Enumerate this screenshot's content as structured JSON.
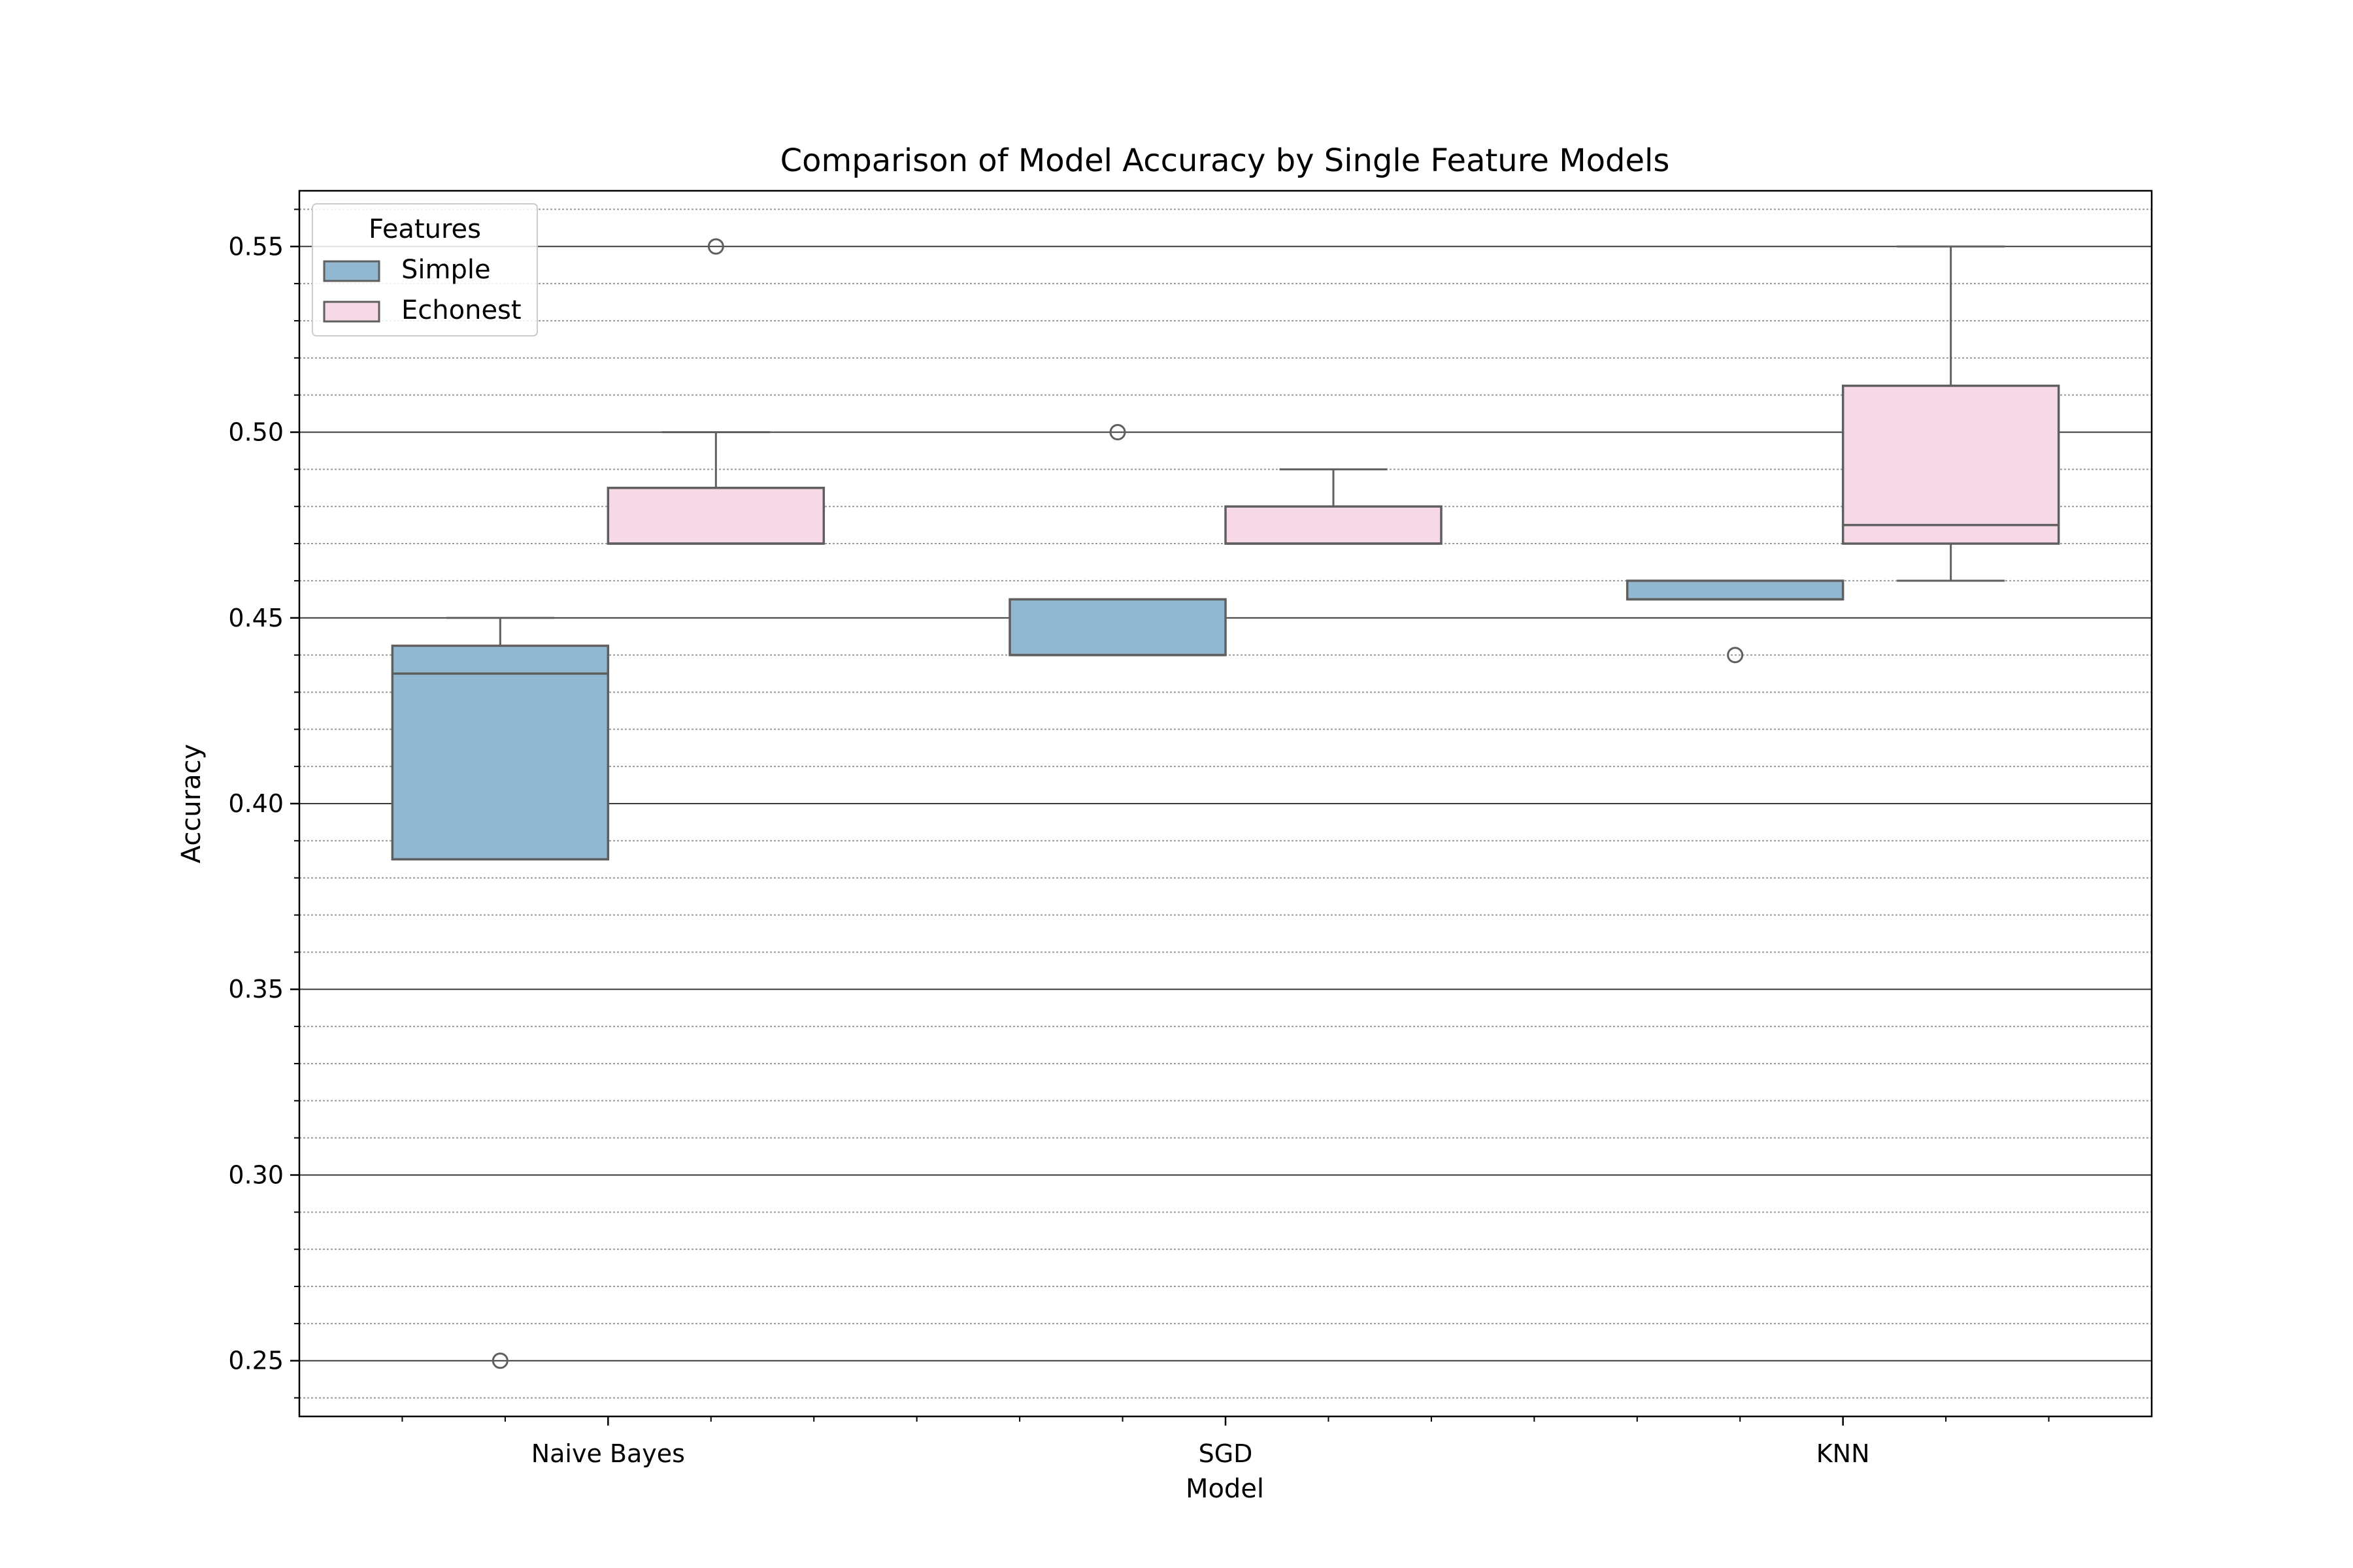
{
  "chart_data": {
    "type": "box",
    "title": "Comparison of Model Accuracy by Single Feature Models",
    "xlabel": "Model",
    "ylabel": "Accuracy",
    "categories": [
      "Naive Bayes",
      "SGD",
      "KNN"
    ],
    "ylim": [
      0.235,
      0.565
    ],
    "yticks": [
      0.25,
      0.3,
      0.35,
      0.4,
      0.45,
      0.5,
      0.55
    ],
    "ytick_labels": [
      "0.25",
      "0.30",
      "0.35",
      "0.40",
      "0.45",
      "0.50",
      "0.55"
    ],
    "grid": {
      "major": true,
      "minor": true
    },
    "legend": {
      "title": "Features",
      "placement": "upper-left",
      "entries": [
        "Simple",
        "Echonest"
      ]
    },
    "series": [
      {
        "name": "Simple",
        "color": "#92B8D1",
        "boxes": [
          {
            "category": "Naive Bayes",
            "q1": 0.385,
            "median": 0.435,
            "q3": 0.4425,
            "whisker_low": 0.385,
            "whisker_high": 0.45,
            "outliers": [
              0.25
            ]
          },
          {
            "category": "SGD",
            "q1": 0.44,
            "median": 0.44,
            "q3": 0.455,
            "whisker_low": 0.44,
            "whisker_high": 0.455,
            "outliers": [
              0.5
            ]
          },
          {
            "category": "KNN",
            "q1": 0.455,
            "median": 0.455,
            "q3": 0.46,
            "whisker_low": 0.455,
            "whisker_high": 0.46,
            "outliers": [
              0.44
            ]
          }
        ]
      },
      {
        "name": "Echonest",
        "color": "#F6D8E6",
        "boxes": [
          {
            "category": "Naive Bayes",
            "q1": 0.47,
            "median": 0.47,
            "q3": 0.485,
            "whisker_low": 0.47,
            "whisker_high": 0.5,
            "outliers": [
              0.55
            ]
          },
          {
            "category": "SGD",
            "q1": 0.47,
            "median": 0.47,
            "q3": 0.48,
            "whisker_low": 0.47,
            "whisker_high": 0.49,
            "outliers": []
          },
          {
            "category": "KNN",
            "q1": 0.47,
            "median": 0.475,
            "q3": 0.5125,
            "whisker_low": 0.46,
            "whisker_high": 0.55,
            "outliers": []
          }
        ]
      }
    ],
    "line_color": "#5f5f5f"
  }
}
